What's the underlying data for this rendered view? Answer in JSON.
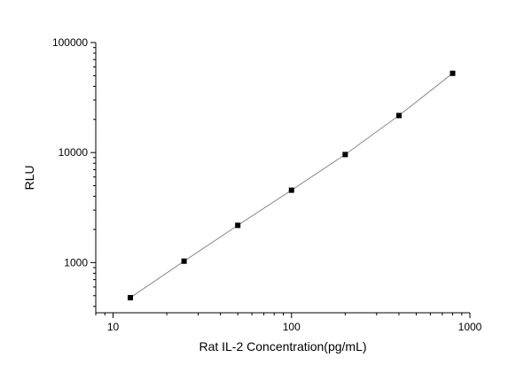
{
  "chart_data": {
    "type": "scatter",
    "title": "",
    "xlabel": "Rat IL-2 Concentration(pg/mL)",
    "ylabel": "RLU",
    "x_scale": "log",
    "y_scale": "log",
    "xlim": [
      8,
      1000
    ],
    "ylim": [
      350,
      100000
    ],
    "x_ticks": [
      10,
      100,
      1000
    ],
    "x_tick_labels": [
      "10",
      "100",
      "1000"
    ],
    "y_ticks": [
      1000,
      10000,
      100000
    ],
    "y_tick_labels": [
      "1000",
      "10000",
      "100000"
    ],
    "grid": false,
    "legend": "none",
    "series": [
      {
        "x": [
          12.5,
          25,
          50,
          100,
          200,
          400,
          800
        ],
        "y": [
          480,
          1030,
          2180,
          4550,
          9600,
          21700,
          52500
        ],
        "marker": "square",
        "fit_line": true
      }
    ],
    "colors": {
      "marker": "#000000",
      "line": "#8a8a8a",
      "axis": "#000000"
    }
  }
}
